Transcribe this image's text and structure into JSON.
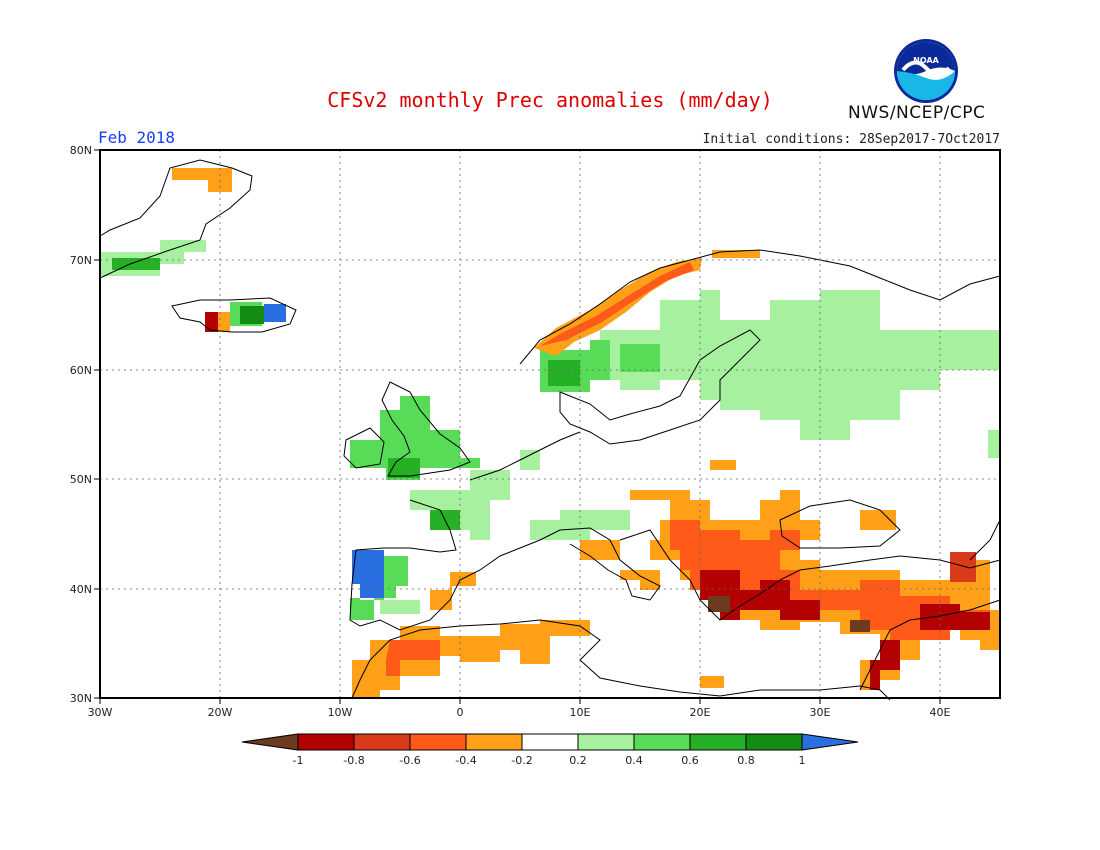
{
  "title": "CFSv2 monthly Prec anomalies (mm/day)",
  "month": "Feb 2018",
  "initial_conditions": "Initial conditions: 28Sep2017-7Oct2017",
  "agency": "NWS/NCEP/CPC",
  "logo_text": "NOAA",
  "map": {
    "lon_range": [
      -30,
      45
    ],
    "lat_range": [
      30,
      80
    ],
    "lon_ticks": [
      "30W",
      "20W",
      "10W",
      "0",
      "10E",
      "20E",
      "30E",
      "40E"
    ],
    "lat_ticks": [
      "30N",
      "40N",
      "50N",
      "60N",
      "70N",
      "80N"
    ],
    "gridlines": true
  },
  "colorbar": {
    "labels": [
      "-1",
      "-0.8",
      "-0.6",
      "-0.4",
      "-0.2",
      "0.2",
      "0.4",
      "0.6",
      "0.8",
      "1"
    ],
    "colors": [
      "#6b3a1f",
      "#b30000",
      "#d93a1a",
      "#ff5a1a",
      "#ffa018",
      "#ffffff",
      "#a6f0a0",
      "#58dc58",
      "#26b026",
      "#138c13",
      "#2a6fe0"
    ]
  },
  "anomaly_regions": [
    {
      "name": "Iberia west",
      "color": "#2a6fe0"
    },
    {
      "name": "Norway coast",
      "color": "#ff5a1a"
    },
    {
      "name": "Greece/Aegean",
      "color": "#b30000"
    },
    {
      "name": "Turkey",
      "color": "#d93a1a"
    },
    {
      "name": "Russia",
      "color": "#a6f0a0"
    }
  ]
}
